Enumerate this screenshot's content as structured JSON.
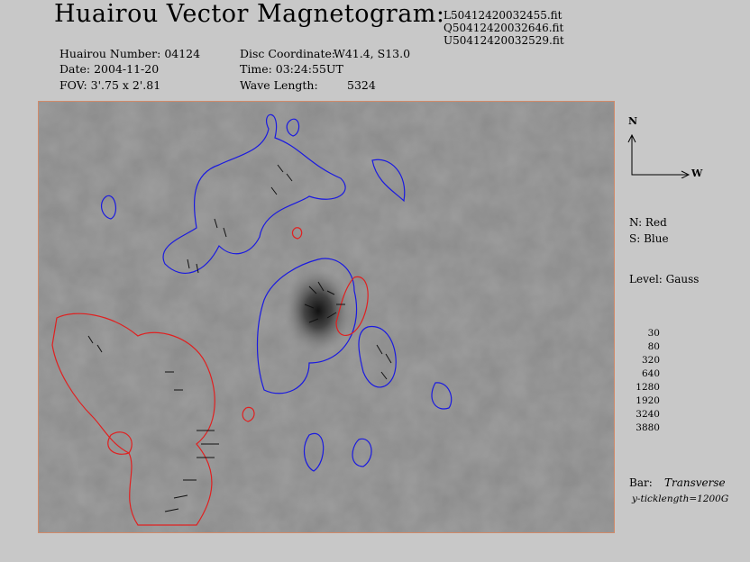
{
  "title": "Huairou Vector Magnetogram:",
  "files": [
    "L50412420032455.fit",
    "Q50412420032646.fit",
    "U50412420032529.fit"
  ],
  "info": {
    "number": "Huairou Number: 04124",
    "date": "Date: 2004-11-20",
    "fov": "FOV:  3'.75 x 2'.81",
    "disc_label": "Disc Coordinate:",
    "disc_value": "W41.4, S13.0",
    "time": "Time: 03:24:55UT",
    "wave_label": "Wave Length:",
    "wave_value": "5324"
  },
  "compass": {
    "north": "N",
    "west": "W"
  },
  "legend": {
    "north": "N: Red",
    "south": "S: Blue",
    "level": "Level: Gauss",
    "levels": [
      "30",
      "80",
      "320",
      "640",
      "1280",
      "1920",
      "3240",
      "3880"
    ],
    "bar_label": "Bar:",
    "bar_value": "Transverse",
    "tick": "y-ticklength=1200G"
  },
  "colors": {
    "north": "#e02020",
    "south": "#1a1ae0",
    "border": "#d08a6a"
  }
}
